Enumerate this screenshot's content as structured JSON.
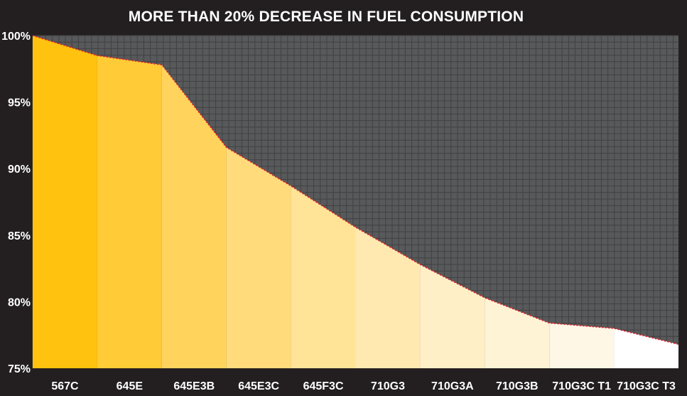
{
  "chart_data": {
    "type": "area",
    "title": "MORE THAN 20% DECREASE IN FUEL CONSUMPTION",
    "xlabel": "",
    "ylabel": "",
    "categories": [
      "567C",
      "645E",
      "645E3B",
      "645E3C",
      "645F3C",
      "710G3",
      "710G3A",
      "710G3B",
      "710G3C T1",
      "710G3C T3"
    ],
    "y_ticks": [
      "100%",
      "95%",
      "90%",
      "85%",
      "80%",
      "75%"
    ],
    "y_tick_values": [
      100,
      95,
      90,
      85,
      80,
      75
    ],
    "ylim": [
      75,
      100
    ],
    "grid": true,
    "series": [
      {
        "values": [
          98.5,
          97.8,
          91.6,
          88.7,
          85.6,
          82.8,
          80.3,
          78.4,
          78.0,
          76.8
        ]
      }
    ],
    "start_value": 100,
    "colors": {
      "background": "#231f20",
      "plot_background": "#58595b",
      "grid": "#404143",
      "line": "#d8262d",
      "fills": [
        "#ffc20e",
        "#ffcb37",
        "#ffd35c",
        "#ffdb7b",
        "#ffe397",
        "#ffe9b0",
        "#ffefc6",
        "#fff3d6",
        "#fff7e6",
        "#ffffff"
      ]
    }
  }
}
